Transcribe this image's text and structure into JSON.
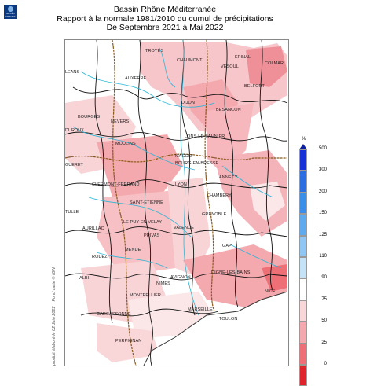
{
  "logo": {
    "text": "MÉTÉO FRANCE",
    "primary_color": "#0b3a82"
  },
  "title": {
    "line1": "Bassin Rhône Méditerranée",
    "line2": "Rapport à la normale 1981/2010 du cumul de précipitations",
    "line3": "De Septembre 2021 à Mai 2022"
  },
  "credit": "produit élaboré le 02 Juin 2022",
  "credit2": "Fond carte © IGN",
  "map": {
    "cities": [
      {
        "name": "TROYES"
      },
      {
        "name": "CHAUMONT"
      },
      {
        "name": "EPINAL"
      },
      {
        "name": "COLMAR"
      },
      {
        "name": "AUXERRE"
      },
      {
        "name": "VESOUL"
      },
      {
        "name": "BELFORT"
      },
      {
        "name": "DIJON"
      },
      {
        "name": "BESANCON"
      },
      {
        "name": "BOURGES"
      },
      {
        "name": "NEVERS"
      },
      {
        "name": "MOULINS"
      },
      {
        "name": "LONS-LE-SAUNIER"
      },
      {
        "name": "MACON"
      },
      {
        "name": "BOURG-EN-BRESSE"
      },
      {
        "name": "ANNECY"
      },
      {
        "name": "CLERMONT-FERRAND"
      },
      {
        "name": "LYON"
      },
      {
        "name": "CHAMBERY"
      },
      {
        "name": "SAINT-ETIENNE"
      },
      {
        "name": "GRENOBLE"
      },
      {
        "name": "LE PUY-EN-VELAY"
      },
      {
        "name": "VALENCE"
      },
      {
        "name": "AURILLAC"
      },
      {
        "name": "PRIVAS"
      },
      {
        "name": "GAP"
      },
      {
        "name": "RODEZ"
      },
      {
        "name": "MENDE"
      },
      {
        "name": "DIGNE-LES-BAINS"
      },
      {
        "name": "ALBI"
      },
      {
        "name": "NIMES"
      },
      {
        "name": "AVIGNON"
      },
      {
        "name": "NICE"
      },
      {
        "name": "MONTPELLIER"
      },
      {
        "name": "MARSEILLE"
      },
      {
        "name": "CARCASSONNE"
      },
      {
        "name": "TOULON"
      },
      {
        "name": "PERPIGNAN"
      }
    ],
    "edge_labels": [
      "LEANS",
      "DUROUX",
      "GUERET",
      "TULLE"
    ]
  },
  "legend": {
    "unit": "%",
    "ticks": [
      "500",
      "300",
      "200",
      "150",
      "125",
      "110",
      "90",
      "75",
      "50",
      "25",
      "0"
    ],
    "colors": [
      "#1730d8",
      "#2a6ee0",
      "#3b8ee8",
      "#5eaaef",
      "#8fc6f3",
      "#c4e2f8",
      "#ffffff",
      "#f9d7d9",
      "#f4a9ae",
      "#ef6f77",
      "#e0242b"
    ]
  }
}
